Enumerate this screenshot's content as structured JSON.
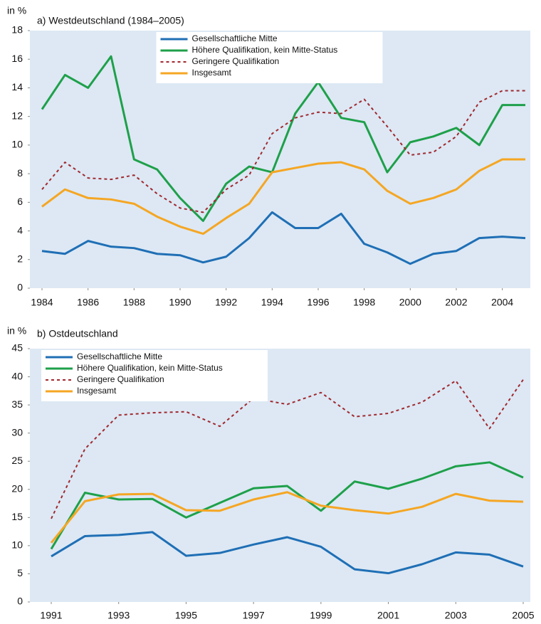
{
  "chart_data": [
    {
      "type": "line",
      "title": "a) Westdeutschland (1984–2005)",
      "ylabel": "in %",
      "x": [
        1984,
        1985,
        1986,
        1987,
        1988,
        1989,
        1990,
        1991,
        1992,
        1993,
        1994,
        1995,
        1996,
        1997,
        1998,
        1999,
        2000,
        2001,
        2002,
        2003,
        2004,
        2005
      ],
      "xlim": [
        1984,
        2005
      ],
      "xticks": [
        1984,
        1986,
        1988,
        1990,
        1992,
        1994,
        1996,
        1998,
        2000,
        2002,
        2004
      ],
      "ylim": [
        0,
        18
      ],
      "yticks": [
        0,
        2,
        4,
        6,
        8,
        10,
        12,
        14,
        16,
        18
      ],
      "grid": false,
      "legend": "upper center",
      "series": [
        {
          "name": "Gesellschaftliche Mitte",
          "color": "#1f6fb5",
          "style": "solid",
          "values": [
            2.6,
            2.4,
            3.3,
            2.9,
            2.8,
            2.4,
            2.3,
            1.8,
            2.2,
            3.5,
            5.3,
            4.2,
            4.2,
            5.2,
            3.1,
            2.5,
            1.7,
            2.4,
            2.6,
            3.5,
            3.6,
            3.5
          ]
        },
        {
          "name": "Höhere Qualifikation, kein Mitte-Status",
          "color": "#1ea04a",
          "style": "solid",
          "values": [
            12.5,
            14.9,
            14.0,
            16.2,
            9.0,
            8.3,
            6.3,
            4.7,
            7.3,
            8.5,
            8.1,
            12.2,
            14.4,
            11.9,
            11.6,
            8.1,
            10.2,
            10.6,
            11.2,
            10.0,
            12.8,
            12.8
          ]
        },
        {
          "name": "Geringere Qualifikation",
          "color": "#a0282f",
          "style": "dotted",
          "values": [
            6.9,
            8.8,
            7.7,
            7.6,
            7.9,
            6.6,
            5.6,
            5.3,
            6.9,
            7.9,
            10.8,
            11.9,
            12.3,
            12.2,
            13.2,
            11.3,
            9.3,
            9.5,
            10.6,
            13.0,
            13.8,
            13.8
          ]
        },
        {
          "name": "Insgesamt",
          "color": "#f5a623",
          "style": "solid",
          "values": [
            5.7,
            6.9,
            6.3,
            6.2,
            5.9,
            5.0,
            4.3,
            3.8,
            4.9,
            5.9,
            8.1,
            8.4,
            8.7,
            8.8,
            8.3,
            6.8,
            5.9,
            6.3,
            6.9,
            8.2,
            9.0,
            9.0
          ]
        }
      ]
    },
    {
      "type": "line",
      "title": "b) Ostdeutschland",
      "ylabel": "in %",
      "x": [
        1991,
        1992,
        1993,
        1994,
        1995,
        1996,
        1997,
        1998,
        1999,
        2000,
        2001,
        2002,
        2003,
        2004,
        2005
      ],
      "xlim": [
        1991,
        2005
      ],
      "xticks": [
        1991,
        1993,
        1995,
        1997,
        1999,
        2001,
        2003,
        2005
      ],
      "ylim": [
        0,
        45
      ],
      "yticks": [
        0,
        5,
        10,
        15,
        20,
        25,
        30,
        35,
        40,
        45
      ],
      "grid": false,
      "legend": "upper left",
      "series": [
        {
          "name": "Gesellschaftliche Mitte",
          "color": "#1f6fb5",
          "style": "solid",
          "values": [
            8.1,
            11.7,
            11.9,
            12.4,
            8.2,
            8.7,
            10.2,
            11.5,
            9.8,
            5.8,
            5.1,
            6.7,
            8.8,
            8.4,
            6.3
          ]
        },
        {
          "name": "Höhere Qualifikation, kein Mitte-Status",
          "color": "#1ea04a",
          "style": "solid",
          "values": [
            9.4,
            19.4,
            18.2,
            18.3,
            15.0,
            17.6,
            20.2,
            20.6,
            16.2,
            21.4,
            20.1,
            21.9,
            24.1,
            24.8,
            22.1
          ]
        },
        {
          "name": "Geringere Qualifikation",
          "color": "#a0282f",
          "style": "dotted",
          "values": [
            14.8,
            27.2,
            33.2,
            33.6,
            33.8,
            31.2,
            36.2,
            35.1,
            37.2,
            32.9,
            33.5,
            35.5,
            39.3,
            30.8,
            39.5
          ]
        },
        {
          "name": "Insgesamt",
          "color": "#f5a623",
          "style": "solid",
          "values": [
            10.5,
            17.9,
            19.1,
            19.2,
            16.3,
            16.2,
            18.2,
            19.5,
            17.1,
            16.3,
            15.7,
            16.9,
            19.2,
            18.0,
            17.8
          ]
        }
      ]
    }
  ]
}
